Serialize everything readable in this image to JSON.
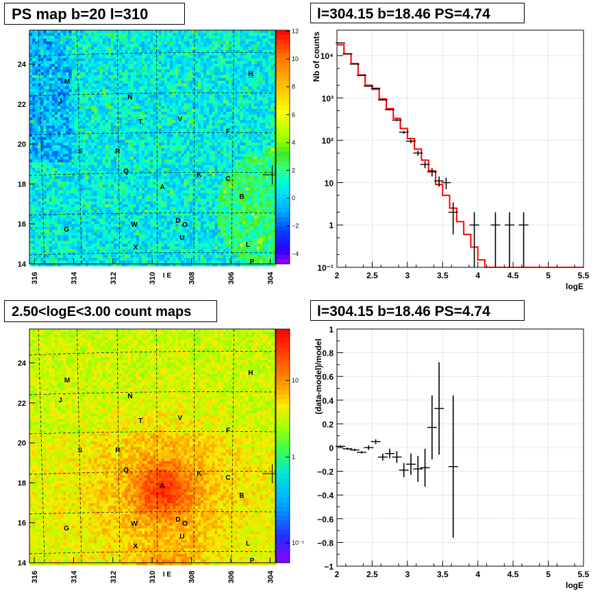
{
  "panels": {
    "ps_map_title": "PS map b=20 l=310",
    "spectrum_title": "l=304.15 b=18.46 PS=4.74",
    "count_map_title": "2.50<logE<3.00 count maps",
    "residual_title": "l=304.15 b=18.46 PS=4.74"
  },
  "map_axes": {
    "x_ticks": [
      "316",
      "314",
      "312",
      "310",
      "308",
      "306",
      "304"
    ],
    "y_ticks": [
      "14",
      "16",
      "18",
      "20",
      "22",
      "24"
    ],
    "ps_colorbar_ticks": [
      "12",
      "10",
      "8",
      "6",
      "4",
      "2",
      "0",
      "−2",
      "−4"
    ],
    "count_colorbar_ticks": [
      "10",
      "1",
      "10⁻¹"
    ]
  },
  "sources": [
    "M",
    "H",
    "J",
    "N",
    "T",
    "V",
    "F",
    "S",
    "R",
    "Q",
    "K",
    "C",
    "A",
    "B",
    "G",
    "W",
    "D",
    "O",
    "U",
    "L",
    "X",
    "P",
    "I E"
  ],
  "chart_data": [
    {
      "type": "heatmap",
      "title": "PS map b=20 l=310",
      "xlabel": "",
      "ylabel": "",
      "xlim": [
        316,
        304
      ],
      "ylim": [
        14,
        25.7
      ],
      "zlim": [
        -5,
        12
      ],
      "cross": [
        304.15,
        18.46
      ]
    },
    {
      "type": "line",
      "title": "l=304.15 b=18.46 PS=4.74",
      "xlabel": "logE",
      "ylabel": "Nb of counts",
      "xlim": [
        2,
        5.5
      ],
      "ylim": [
        0.1,
        40000
      ],
      "y_scale": "log",
      "x_ticks": [
        "2",
        "2.5",
        "3",
        "3.5",
        "4",
        "4.5",
        "5",
        "5.5"
      ],
      "y_ticks": [
        "10⁻¹",
        "1",
        "10",
        "10²",
        "10³",
        "10⁴"
      ],
      "model_steps": [
        {
          "x0": 2.0,
          "x1": 2.1,
          "y": 18000
        },
        {
          "x0": 2.1,
          "x1": 2.2,
          "y": 11000
        },
        {
          "x0": 2.2,
          "x1": 2.3,
          "y": 6500
        },
        {
          "x0": 2.3,
          "x1": 2.4,
          "y": 3500
        },
        {
          "x0": 2.4,
          "x1": 2.5,
          "y": 2000
        },
        {
          "x0": 2.5,
          "x1": 2.6,
          "y": 1600
        },
        {
          "x0": 2.6,
          "x1": 2.7,
          "y": 950
        },
        {
          "x0": 2.7,
          "x1": 2.8,
          "y": 560
        },
        {
          "x0": 2.8,
          "x1": 2.9,
          "y": 330
        },
        {
          "x0": 2.9,
          "x1": 3.0,
          "y": 190
        },
        {
          "x0": 3.0,
          "x1": 3.1,
          "y": 110
        },
        {
          "x0": 3.1,
          "x1": 3.2,
          "y": 62
        },
        {
          "x0": 3.2,
          "x1": 3.3,
          "y": 34
        },
        {
          "x0": 3.3,
          "x1": 3.4,
          "y": 19
        },
        {
          "x0": 3.4,
          "x1": 3.5,
          "y": 9
        },
        {
          "x0": 3.5,
          "x1": 3.6,
          "y": 5
        },
        {
          "x0": 3.6,
          "x1": 3.7,
          "y": 2.5
        },
        {
          "x0": 3.7,
          "x1": 3.8,
          "y": 1.2
        },
        {
          "x0": 3.8,
          "x1": 3.9,
          "y": 0.6
        },
        {
          "x0": 3.9,
          "x1": 4.0,
          "y": 0.3
        },
        {
          "x0": 4.0,
          "x1": 4.1,
          "y": 0.15
        },
        {
          "x0": 4.1,
          "x1": 5.5,
          "y": 0.1
        }
      ],
      "points": [
        {
          "x": 2.05,
          "y": 20000,
          "lo": 19800,
          "hi": 20200
        },
        {
          "x": 2.15,
          "y": 11000,
          "lo": 10900,
          "hi": 11100
        },
        {
          "x": 2.25,
          "y": 6300,
          "lo": 6220,
          "hi": 6380
        },
        {
          "x": 2.35,
          "y": 3400,
          "lo": 3340,
          "hi": 3460
        },
        {
          "x": 2.45,
          "y": 1900,
          "lo": 1860,
          "hi": 1940
        },
        {
          "x": 2.55,
          "y": 1700,
          "lo": 1660,
          "hi": 1740
        },
        {
          "x": 2.65,
          "y": 900,
          "lo": 870,
          "hi": 930
        },
        {
          "x": 2.75,
          "y": 530,
          "lo": 507,
          "hi": 553
        },
        {
          "x": 2.85,
          "y": 300,
          "lo": 283,
          "hi": 317
        },
        {
          "x": 2.95,
          "y": 155,
          "lo": 143,
          "hi": 167
        },
        {
          "x": 3.05,
          "y": 95,
          "lo": 85,
          "hi": 105
        },
        {
          "x": 3.15,
          "y": 50,
          "lo": 43,
          "hi": 57
        },
        {
          "x": 3.25,
          "y": 27,
          "lo": 22,
          "hi": 32
        },
        {
          "x": 3.35,
          "y": 18,
          "lo": 14,
          "hi": 22
        },
        {
          "x": 3.45,
          "y": 11,
          "lo": 8,
          "hi": 14
        },
        {
          "x": 3.55,
          "y": 10,
          "lo": 7,
          "hi": 13
        },
        {
          "x": 3.65,
          "y": 2,
          "lo": 0.6,
          "hi": 3.4
        },
        {
          "x": 3.95,
          "y": 1,
          "lo": 0.1,
          "hi": 2
        },
        {
          "x": 4.25,
          "y": 1,
          "lo": 0.1,
          "hi": 2
        },
        {
          "x": 4.45,
          "y": 1,
          "lo": 0.1,
          "hi": 2
        },
        {
          "x": 4.65,
          "y": 1,
          "lo": 0.1,
          "hi": 2
        }
      ],
      "colors": {
        "model": "#ff0000",
        "data": "#000000"
      },
      "grid": true
    },
    {
      "type": "heatmap",
      "title": "2.50<logE<3.00 count maps",
      "xlabel": "",
      "ylabel": "",
      "xlim": [
        316,
        304
      ],
      "ylim": [
        14,
        25.7
      ],
      "z_scale": "log",
      "zlim": [
        0.05,
        40
      ],
      "cross": [
        304.15,
        18.46
      ]
    },
    {
      "type": "scatter",
      "title": "l=304.15 b=18.46 PS=4.74",
      "xlabel": "logE",
      "ylabel": "(data-model)/model",
      "xlim": [
        2,
        5.5
      ],
      "ylim": [
        -1,
        1
      ],
      "x_ticks": [
        "2",
        "2.5",
        "3",
        "3.5",
        "4",
        "4.5",
        "5",
        "5.5"
      ],
      "y_ticks": [
        "−1",
        "−0.8",
        "−0.6",
        "−0.4",
        "−0.2",
        "0",
        "0.2",
        "0.4",
        "0.6",
        "0.8",
        "1"
      ],
      "points": [
        {
          "x": 2.05,
          "y": 0.01,
          "lo": 0.0,
          "hi": 0.02
        },
        {
          "x": 2.15,
          "y": -0.01,
          "lo": -0.02,
          "hi": 0.0
        },
        {
          "x": 2.25,
          "y": -0.02,
          "lo": -0.03,
          "hi": -0.01
        },
        {
          "x": 2.35,
          "y": -0.04,
          "lo": -0.05,
          "hi": -0.03
        },
        {
          "x": 2.45,
          "y": 0.0,
          "lo": -0.02,
          "hi": 0.02
        },
        {
          "x": 2.55,
          "y": 0.05,
          "lo": 0.03,
          "hi": 0.07
        },
        {
          "x": 2.65,
          "y": -0.08,
          "lo": -0.11,
          "hi": -0.05
        },
        {
          "x": 2.75,
          "y": -0.05,
          "lo": -0.09,
          "hi": -0.01
        },
        {
          "x": 2.85,
          "y": -0.08,
          "lo": -0.13,
          "hi": -0.03
        },
        {
          "x": 2.95,
          "y": -0.19,
          "lo": -0.25,
          "hi": -0.13
        },
        {
          "x": 3.05,
          "y": -0.14,
          "lo": -0.23,
          "hi": -0.05
        },
        {
          "x": 3.15,
          "y": -0.18,
          "lo": -0.29,
          "hi": -0.07
        },
        {
          "x": 3.25,
          "y": -0.17,
          "lo": -0.33,
          "hi": -0.01
        },
        {
          "x": 3.35,
          "y": 0.17,
          "lo": -0.1,
          "hi": 0.44
        },
        {
          "x": 3.45,
          "y": 0.33,
          "lo": -0.06,
          "hi": 0.72
        },
        {
          "x": 3.65,
          "y": -0.16,
          "lo": -0.76,
          "hi": 0.44
        }
      ],
      "grid": true
    }
  ]
}
